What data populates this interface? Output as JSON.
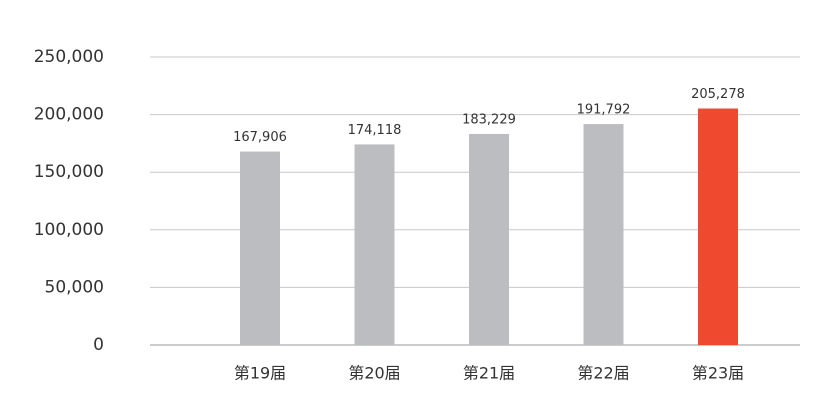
{
  "chart_data": {
    "type": "bar",
    "categories": [
      "第19届",
      "第20届",
      "第21届",
      "第22届",
      "第23届"
    ],
    "values": [
      167906,
      174118,
      183229,
      191792,
      205278
    ],
    "value_labels": [
      "167,906",
      "174,118",
      "183,229",
      "191,792",
      "205,278"
    ],
    "colors": [
      "#bcbdc0",
      "#bcbdc0",
      "#bcbdc0",
      "#bcbdc0",
      "#ef4a2f"
    ],
    "ylim": [
      0,
      250000
    ],
    "yticks": [
      0,
      {
        "value": 50000,
        "label": "50,000"
      },
      {
        "value": 100000,
        "label": "100,000"
      },
      {
        "value": 150000,
        "label": "150,000"
      },
      {
        "value": 200000,
        "label": "200,000"
      },
      {
        "value": 250000,
        "label": "250,000"
      }
    ],
    "grid": true
  }
}
